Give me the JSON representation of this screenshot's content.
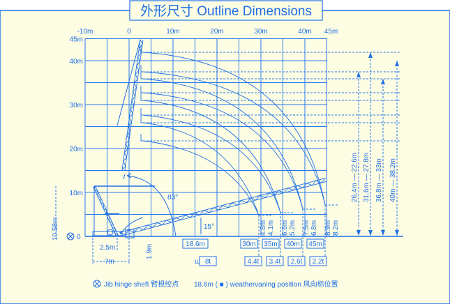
{
  "title": "外形尺寸 Outline Dimensions",
  "colors": {
    "line": "#1f6fe6",
    "background": "#fdfde4"
  },
  "x_ticks": [
    "-10m",
    "0",
    "10m",
    "20m",
    "30m",
    "40m",
    "45m"
  ],
  "y_ticks": [
    "45m",
    "40m",
    "30m",
    "20m",
    "10m",
    "0"
  ],
  "angles": {
    "boom_max": "83°",
    "boom_min": "15°"
  },
  "height_dims": [
    {
      "a": "4.8m",
      "b": "4.1m"
    },
    {
      "a": "6.6m",
      "b": "5.2m"
    },
    {
      "a": "7.5m",
      "b": "6.8m"
    },
    {
      "a": "8.9m",
      "b": "8.2m"
    }
  ],
  "right_dims": [
    "26.4m — 22.6m",
    "31.6m — 27.8m",
    "36.8m — 33m",
    "40m — 38.2m"
  ],
  "base_dims": {
    "height": "10.58m",
    "width_a": "2.5m",
    "width_b": "7m",
    "hinge_h": "1.9m"
  },
  "boom_lengths": [
    {
      "length": "18.6m",
      "load": "8t"
    },
    {
      "length": "30m",
      "load": "4.4t"
    },
    {
      "length": "35m",
      "load": "3.4t"
    },
    {
      "length": "40m",
      "load": "2.6t"
    },
    {
      "length": "45m",
      "load": "2.2t"
    }
  ],
  "weight_icon": "weight-icon",
  "legend": {
    "hinge": "Jib hinge sheft 臂根绞点",
    "vane": "18.6m ( ■ ) weathervaning position 风向标位置"
  }
}
